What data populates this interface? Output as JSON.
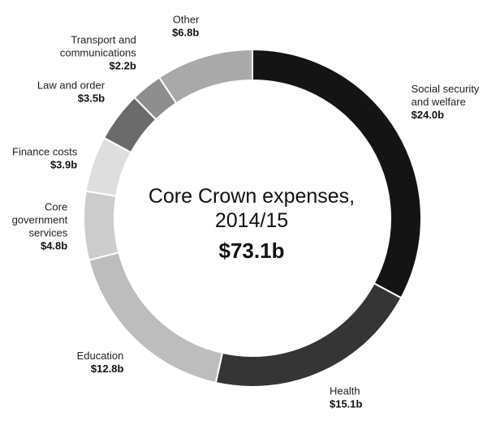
{
  "chart_data": {
    "type": "pie",
    "subtype": "donut",
    "title": "Core Crown expenses, 2014/15",
    "center": {
      "title_lines": [
        "Core Crown expenses,",
        "2014/15"
      ],
      "total": "$73.1b"
    },
    "unit": "$b",
    "slices": [
      {
        "label_lines": [
          "Social security",
          "and welfare"
        ],
        "value": 24.0,
        "value_label": "$24.0b",
        "color": "#141414"
      },
      {
        "label_lines": [
          "Health"
        ],
        "value": 15.1,
        "value_label": "$15.1b",
        "color": "#353535"
      },
      {
        "label_lines": [
          "Education"
        ],
        "value": 12.8,
        "value_label": "$12.8b",
        "color": "#bdbdbd"
      },
      {
        "label_lines": [
          "Core",
          "government",
          "services"
        ],
        "value": 4.8,
        "value_label": "$4.8b",
        "color": "#cccccc"
      },
      {
        "label_lines": [
          "Finance costs"
        ],
        "value": 3.9,
        "value_label": "$3.9b",
        "color": "#dedede"
      },
      {
        "label_lines": [
          "Law and order"
        ],
        "value": 3.5,
        "value_label": "$3.5b",
        "color": "#6b6b6b"
      },
      {
        "label_lines": [
          "Transport and",
          "communications"
        ],
        "value": 2.2,
        "value_label": "$2.2b",
        "color": "#8e8e8e"
      },
      {
        "label_lines": [
          "Other"
        ],
        "value": 6.8,
        "value_label": "$6.8b",
        "color": "#a9a9a9"
      }
    ],
    "legend": "none"
  }
}
